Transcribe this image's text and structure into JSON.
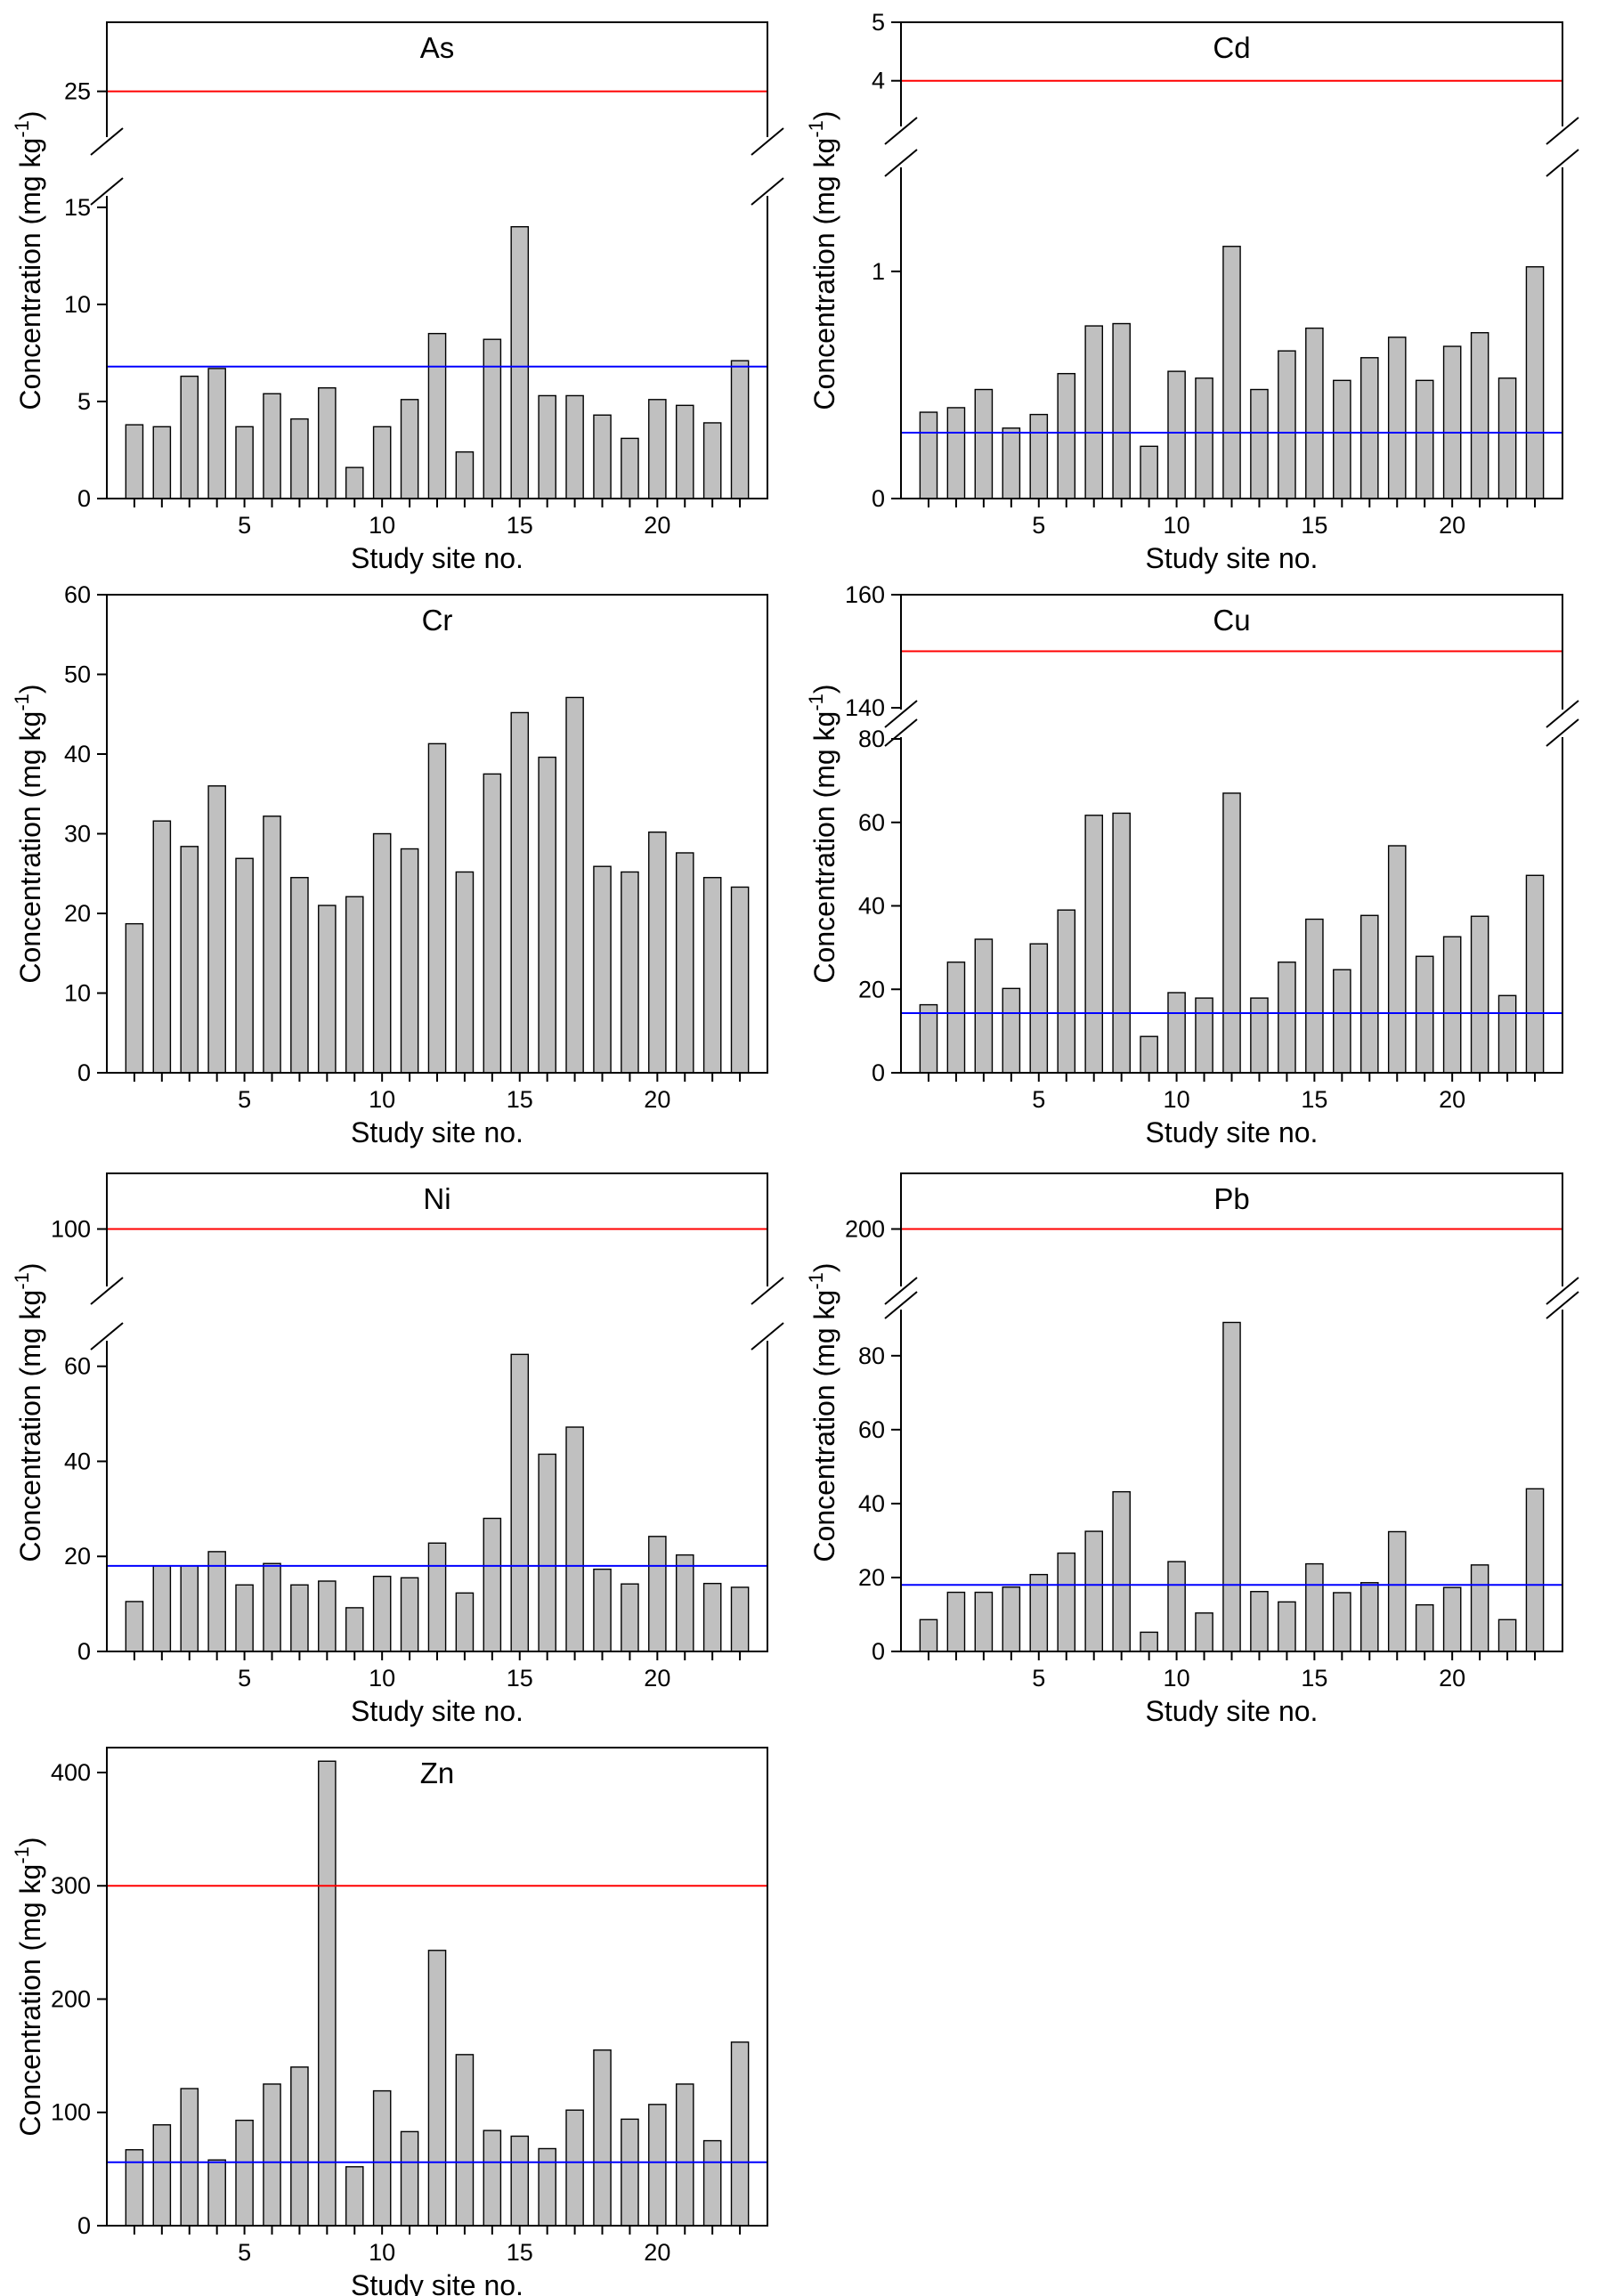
{
  "chart_data": [
    {
      "type": "bar",
      "title": "As",
      "xlabel": "Study site no.",
      "ylabel": "Concentration (mg kg-1)",
      "ylabel_base": "Concentration (mg kg",
      "ylabel_exp": "-1",
      "ylabel_close": ")",
      "x_ticks": [
        "5",
        "10",
        "15",
        "20"
      ],
      "categories": [
        1,
        2,
        3,
        4,
        5,
        6,
        7,
        8,
        9,
        10,
        11,
        12,
        13,
        14,
        15,
        16,
        17,
        18,
        19,
        20,
        21,
        22,
        23
      ],
      "values": [
        3.8,
        3.7,
        6.3,
        6.7,
        3.7,
        5.4,
        4.1,
        5.7,
        1.6,
        3.7,
        5.1,
        8.5,
        2.4,
        8.2,
        14.0,
        5.3,
        5.3,
        4.3,
        3.1,
        5.1,
        4.8,
        3.9,
        7.1
      ],
      "y_axis": "broken",
      "lower_ylim": [
        0,
        15.5
      ],
      "lower_ticks": [
        "0",
        "5",
        "10",
        "15"
      ],
      "upper_ylim": [
        21.5,
        30.5
      ],
      "upper_ticks": [
        "25"
      ],
      "blue_line": 6.8,
      "red_line": 25,
      "line_colors": {
        "blue": "#0000ff",
        "red": "#ff0000"
      },
      "bar_color": "#c0c0c0"
    },
    {
      "type": "bar",
      "title": "Cd",
      "xlabel": "Study site no.",
      "ylabel": "Concentration (mg kg-1)",
      "ylabel_base": "Concentration (mg kg",
      "ylabel_exp": "-1",
      "ylabel_close": ")",
      "x_ticks": [
        "5",
        "10",
        "15",
        "20"
      ],
      "categories": [
        1,
        2,
        3,
        4,
        5,
        6,
        7,
        8,
        9,
        10,
        11,
        12,
        13,
        14,
        15,
        16,
        17,
        18,
        19,
        20,
        21,
        22,
        23
      ],
      "values": [
        0.38,
        0.4,
        0.48,
        0.31,
        0.37,
        0.55,
        0.76,
        0.77,
        0.23,
        0.56,
        0.53,
        1.11,
        0.48,
        0.65,
        0.75,
        0.52,
        0.62,
        0.71,
        0.52,
        0.67,
        0.73,
        0.53,
        1.02
      ],
      "y_axis": "broken",
      "lower_ylim": [
        0,
        1.45
      ],
      "lower_ticks": [
        "0",
        "1"
      ],
      "upper_ylim": [
        3.25,
        5.0
      ],
      "upper_ticks": [
        "4",
        "5"
      ],
      "blue_line": 0.29,
      "red_line": 4,
      "line_colors": {
        "blue": "#0000ff",
        "red": "#ff0000"
      },
      "bar_color": "#c0c0c0"
    },
    {
      "type": "bar",
      "title": "Cr",
      "xlabel": "Study site no.",
      "ylabel": "Concentration (mg kg-1)",
      "ylabel_base": "Concentration (mg kg",
      "ylabel_exp": "-1",
      "ylabel_close": ")",
      "x_ticks": [
        "5",
        "10",
        "15",
        "20"
      ],
      "categories": [
        1,
        2,
        3,
        4,
        5,
        6,
        7,
        8,
        9,
        10,
        11,
        12,
        13,
        14,
        15,
        16,
        17,
        18,
        19,
        20,
        21,
        22,
        23
      ],
      "values": [
        18.7,
        31.6,
        28.4,
        36.0,
        26.9,
        32.2,
        24.5,
        21.0,
        22.1,
        30.0,
        28.1,
        41.3,
        25.2,
        37.5,
        45.2,
        39.6,
        47.1,
        25.9,
        25.2,
        30.2,
        27.6,
        24.5,
        23.3
      ],
      "y_axis": "linear",
      "ylim": [
        0,
        60
      ],
      "y_ticks": [
        "0",
        "10",
        "20",
        "30",
        "40",
        "50",
        "60"
      ],
      "bar_color": "#c0c0c0"
    },
    {
      "type": "bar",
      "title": "Cu",
      "xlabel": "Study site no.",
      "ylabel": "Concentration (mg kg-1)",
      "ylabel_base": "Concentration (mg kg",
      "ylabel_exp": "-1",
      "ylabel_close": ")",
      "x_ticks": [
        "5",
        "10",
        "15",
        "20"
      ],
      "categories": [
        1,
        2,
        3,
        4,
        5,
        6,
        7,
        8,
        9,
        10,
        11,
        12,
        13,
        14,
        15,
        16,
        17,
        18,
        19,
        20,
        21,
        22,
        23
      ],
      "values": [
        16.3,
        26.5,
        32.0,
        20.2,
        30.9,
        39.0,
        61.7,
        62.2,
        8.7,
        19.2,
        17.9,
        67.0,
        17.9,
        26.5,
        36.8,
        24.7,
        37.7,
        54.4,
        27.9,
        32.6,
        37.5,
        18.5,
        47.3
      ],
      "y_axis": "broken",
      "lower_ylim": [
        0,
        80
      ],
      "lower_ticks": [
        "0",
        "20",
        "40",
        "60",
        "80"
      ],
      "upper_ylim": [
        140,
        160
      ],
      "upper_ticks": [
        "140",
        "160"
      ],
      "blue_line": 14.3,
      "red_line": 150,
      "line_colors": {
        "blue": "#0000ff",
        "red": "#ff0000"
      },
      "bar_color": "#c0c0c0"
    },
    {
      "type": "bar",
      "title": "Ni",
      "xlabel": "Study site no.",
      "ylabel": "Concentration (mg kg-1)",
      "ylabel_base": "Concentration (mg kg",
      "ylabel_exp": "-1",
      "ylabel_close": ")",
      "x_ticks": [
        "5",
        "10",
        "15",
        "20"
      ],
      "categories": [
        1,
        2,
        3,
        4,
        5,
        6,
        7,
        8,
        9,
        10,
        11,
        12,
        13,
        14,
        15,
        16,
        17,
        18,
        19,
        20,
        21,
        22,
        23
      ],
      "values": [
        10.5,
        18.0,
        18.0,
        21.0,
        14.0,
        18.5,
        14.0,
        14.8,
        9.2,
        15.8,
        15.5,
        22.8,
        12.3,
        28.0,
        62.5,
        41.5,
        47.2,
        17.3,
        14.2,
        24.2,
        20.3,
        14.3,
        13.5
      ],
      "y_axis": "broken",
      "lower_ylim": [
        0,
        65
      ],
      "lower_ticks": [
        "0",
        "20",
        "40",
        "60"
      ],
      "upper_ylim": [
        80,
        120
      ],
      "upper_ticks": [
        "100"
      ],
      "blue_line": 18.0,
      "red_line": 100,
      "line_colors": {
        "blue": "#0000ff",
        "red": "#ff0000"
      },
      "bar_color": "#c0c0c0"
    },
    {
      "type": "bar",
      "title": "Pb",
      "xlabel": "Study site no.",
      "ylabel": "Concentration (mg kg-1)",
      "ylabel_base": "Concentration (mg kg",
      "ylabel_exp": "-1",
      "ylabel_close": ")",
      "x_ticks": [
        "5",
        "10",
        "15",
        "20"
      ],
      "categories": [
        1,
        2,
        3,
        4,
        5,
        6,
        7,
        8,
        9,
        10,
        11,
        12,
        13,
        14,
        15,
        16,
        17,
        18,
        19,
        20,
        21,
        22,
        23
      ],
      "values": [
        8.6,
        16.0,
        16.0,
        17.4,
        20.8,
        26.6,
        32.5,
        43.2,
        5.2,
        24.3,
        10.4,
        89.0,
        16.2,
        13.4,
        23.7,
        15.9,
        18.6,
        32.4,
        12.6,
        17.3,
        23.4,
        8.6,
        44.0
      ],
      "y_axis": "broken",
      "lower_ylim": [
        0,
        92
      ],
      "lower_ticks": [
        "0",
        "20",
        "40",
        "60",
        "80"
      ],
      "upper_ylim": [
        180,
        220
      ],
      "upper_ticks": [
        "200"
      ],
      "blue_line": 18.0,
      "red_line": 200,
      "line_colors": {
        "blue": "#0000ff",
        "red": "#ff0000"
      },
      "bar_color": "#c0c0c0"
    },
    {
      "type": "bar",
      "title": "Zn",
      "xlabel": "Study site no.",
      "ylabel": "Concentration (mg kg-1)",
      "ylabel_base": "Concentration (mg kg",
      "ylabel_exp": "-1",
      "ylabel_close": ")",
      "x_ticks": [
        "5",
        "10",
        "15",
        "20"
      ],
      "categories": [
        1,
        2,
        3,
        4,
        5,
        6,
        7,
        8,
        9,
        10,
        11,
        12,
        13,
        14,
        15,
        16,
        17,
        18,
        19,
        20,
        21,
        22,
        23
      ],
      "values": [
        67,
        89,
        121,
        58,
        93,
        125,
        140,
        410,
        52,
        119,
        83,
        243,
        151,
        84,
        79,
        68,
        102,
        155,
        94,
        107,
        125,
        75,
        162
      ],
      "y_axis": "linear",
      "ylim": [
        0,
        422
      ],
      "y_ticks": [
        "0",
        "100",
        "200",
        "300",
        "400"
      ],
      "blue_line": 56,
      "red_line": 300,
      "line_colors": {
        "blue": "#0000ff",
        "red": "#ff0000"
      },
      "bar_color": "#c0c0c0"
    }
  ]
}
